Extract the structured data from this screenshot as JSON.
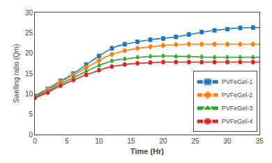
{
  "chart_data": {
    "type": "line",
    "xlabel": "Time (Hr)",
    "ylabel": "Swelling ratio (Qm)",
    "xlim": [
      0,
      35
    ],
    "ylim": [
      0,
      30
    ],
    "xticks": [
      0,
      5,
      10,
      15,
      20,
      25,
      30,
      35
    ],
    "yticks": [
      0,
      5,
      10,
      15,
      20,
      25,
      30
    ],
    "grid": false,
    "legend": "lower right",
    "x": [
      0,
      1,
      2,
      3,
      4,
      5,
      6,
      7,
      8,
      9,
      10,
      11,
      12,
      13,
      14,
      15,
      16,
      17,
      18,
      19,
      20,
      21,
      22,
      23,
      24,
      25,
      26,
      27,
      28,
      29,
      30,
      31,
      32,
      33,
      34,
      35
    ],
    "series": [
      {
        "name": "PVFeGel-1",
        "marker": "square",
        "values": [
          9.5,
          10.3,
          11.2,
          12.2,
          13.2,
          14.0,
          15.0,
          16.0,
          17.2,
          18.3,
          19.3,
          20.3,
          21.2,
          21.8,
          22.2,
          22.5,
          22.8,
          23.1,
          23.3,
          23.5,
          23.6,
          23.8,
          24.0,
          24.3,
          24.6,
          24.9,
          25.2,
          25.4,
          25.6,
          25.8,
          25.9,
          26.1,
          26.2,
          26.3,
          26.3,
          26.3
        ],
        "error": [
          0.45,
          null,
          0.45,
          null,
          0.45,
          null,
          0.45,
          null,
          0.45,
          null,
          0.45,
          null,
          0.45,
          null,
          0.45,
          null,
          0.45,
          null,
          0.45,
          null,
          0.45,
          null,
          0.45,
          null,
          0.45,
          null,
          0.45,
          null,
          0.45,
          null,
          0.45,
          null,
          0.45,
          null,
          0.45,
          null
        ]
      },
      {
        "name": "PVFeGel-2",
        "marker": "diamond",
        "values": [
          9.3,
          10.0,
          11.0,
          12.0,
          12.9,
          13.7,
          14.6,
          15.5,
          16.5,
          17.3,
          18.2,
          19.0,
          19.7,
          20.2,
          20.6,
          20.9,
          21.2,
          21.4,
          21.6,
          21.8,
          21.9,
          22.0,
          22.1,
          22.1,
          22.2,
          22.2,
          22.2,
          22.2,
          22.2,
          22.2,
          22.2,
          22.2,
          22.2,
          22.2,
          22.2,
          22.2
        ],
        "error": [
          0.4,
          null,
          0.4,
          null,
          0.4,
          null,
          0.4,
          null,
          0.4,
          null,
          0.4,
          null,
          0.4,
          null,
          0.4,
          null,
          0.4,
          null,
          0.4,
          null,
          0.4,
          null,
          0.4,
          null,
          0.4,
          null,
          0.4,
          null,
          0.4,
          null,
          0.4,
          null,
          0.4,
          null,
          0.4,
          null
        ]
      },
      {
        "name": "PVFeGel-3",
        "marker": "triangle",
        "values": [
          9.2,
          9.8,
          10.6,
          11.6,
          12.4,
          13.2,
          14.0,
          14.8,
          15.6,
          16.3,
          17.0,
          17.6,
          18.1,
          18.4,
          18.6,
          18.8,
          19.0,
          19.1,
          19.2,
          19.3,
          19.3,
          19.3,
          19.2,
          19.2,
          19.2,
          19.1,
          19.1,
          19.0,
          19.0,
          19.0,
          19.0,
          19.0,
          19.0,
          19.0,
          19.0,
          19.0
        ],
        "error": [
          0.4,
          null,
          0.4,
          null,
          0.4,
          null,
          0.4,
          null,
          0.4,
          null,
          0.4,
          null,
          0.4,
          null,
          0.4,
          null,
          0.4,
          null,
          0.4,
          null,
          0.4,
          null,
          0.4,
          null,
          0.4,
          null,
          0.4,
          null,
          0.4,
          null,
          0.4,
          null,
          0.4,
          null,
          0.4,
          null
        ]
      },
      {
        "name": "PVFeGel-4",
        "marker": "circle",
        "values": [
          9.0,
          9.6,
          10.3,
          11.2,
          12.0,
          12.7,
          13.4,
          14.1,
          14.7,
          15.2,
          15.8,
          16.3,
          16.7,
          17.0,
          17.2,
          17.4,
          17.5,
          17.6,
          17.7,
          17.8,
          17.8,
          17.8,
          17.8,
          17.8,
          17.8,
          17.8,
          17.8,
          17.8,
          17.8,
          17.8,
          17.8,
          17.8,
          17.8,
          17.8,
          17.8,
          17.8
        ],
        "error": [
          0.4,
          null,
          0.4,
          null,
          0.4,
          null,
          0.4,
          null,
          0.4,
          null,
          0.4,
          null,
          0.4,
          null,
          0.4,
          null,
          0.4,
          null,
          0.4,
          null,
          0.4,
          null,
          0.4,
          null,
          0.4,
          null,
          0.4,
          null,
          0.4,
          null,
          0.4,
          null,
          0.4,
          null,
          0.4,
          null
        ]
      }
    ]
  }
}
